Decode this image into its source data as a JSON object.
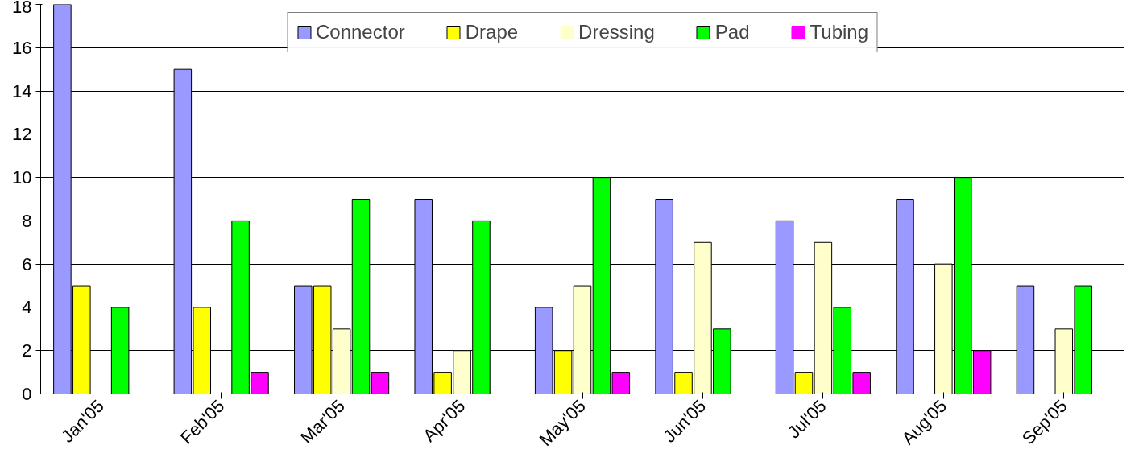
{
  "chart_data": {
    "type": "bar",
    "categories": [
      "Jan'05",
      "Feb'05",
      "Mar'05",
      "Apr'05",
      "May'05",
      "Jun'05",
      "Jul'05",
      "Aug'05",
      "Sep'05"
    ],
    "series": [
      {
        "name": "Connector",
        "color": "#9999ff",
        "values": [
          18,
          15,
          5,
          9,
          4,
          9,
          8,
          9,
          5
        ]
      },
      {
        "name": "Drape",
        "color": "#ffff00",
        "values": [
          5,
          4,
          5,
          1,
          2,
          1,
          1,
          0,
          0
        ]
      },
      {
        "name": "Dressing",
        "color": "#ffffcc",
        "values": [
          0,
          0,
          3,
          2,
          5,
          7,
          7,
          6,
          3
        ]
      },
      {
        "name": "Pad",
        "color": "#00ff00",
        "values": [
          4,
          8,
          9,
          8,
          10,
          3,
          4,
          10,
          5
        ]
      },
      {
        "name": "Tubing",
        "color": "#ff00ff",
        "values": [
          0,
          1,
          1,
          0,
          1,
          0,
          1,
          2,
          0
        ]
      }
    ],
    "ylim": [
      0,
      18
    ],
    "yticks": [
      0,
      2,
      4,
      6,
      8,
      10,
      12,
      14,
      16,
      18
    ],
    "grid": "y",
    "legend": "top"
  }
}
